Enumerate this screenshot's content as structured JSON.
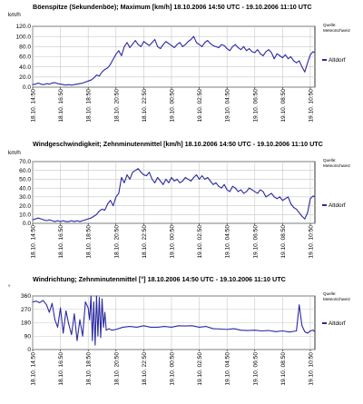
{
  "chart_data": [
    {
      "type": "line",
      "title": "Böenspitze (Sekundenböe); Maximum [km/h] 18.10.2006 14:50 UTC - 19.10.2006 11:10 UTC",
      "ylabel": "km/h",
      "ylim": [
        0,
        120
      ],
      "yticks": [
        "0.0",
        "20.0",
        "40.0",
        "60.0",
        "80.0",
        "100.0",
        "120.0"
      ],
      "xticks": [
        "18.10. 14:50",
        "18.10. 16:50",
        "18.10. 18:50",
        "18.10. 20:50",
        "18.10. 22:50",
        "19.10. 00:50",
        "19.10. 02:50",
        "19.10. 04:50",
        "19.10. 06:50",
        "19.10. 08:50",
        "19.10. 10:50"
      ],
      "xlim_hours": [
        0,
        20.33
      ],
      "grid": true,
      "legend": "right",
      "source_label": "Quelle: MeteoSchweiz",
      "series": [
        {
          "name": "Altdorf",
          "color": "#2a2aa0",
          "x": [
            0,
            0.2,
            0.4,
            0.6,
            0.8,
            1,
            1.2,
            1.4,
            1.6,
            1.8,
            2,
            2.2,
            2.4,
            2.6,
            2.8,
            3,
            3.2,
            3.4,
            3.6,
            3.8,
            4,
            4.2,
            4.4,
            4.6,
            4.8,
            5,
            5.2,
            5.4,
            5.6,
            5.8,
            6,
            6.2,
            6.4,
            6.6,
            6.8,
            7,
            7.2,
            7.4,
            7.6,
            7.8,
            8,
            8.2,
            8.4,
            8.6,
            8.8,
            9,
            9.2,
            9.4,
            9.6,
            9.8,
            10,
            10.2,
            10.4,
            10.6,
            10.8,
            11,
            11.2,
            11.4,
            11.6,
            11.8,
            12,
            12.2,
            12.4,
            12.6,
            12.8,
            13,
            13.2,
            13.4,
            13.6,
            13.8,
            14,
            14.2,
            14.4,
            14.6,
            14.8,
            15,
            15.2,
            15.4,
            15.6,
            15.8,
            16,
            16.2,
            16.4,
            16.6,
            16.8,
            17,
            17.2,
            17.4,
            17.6,
            17.8,
            18,
            18.2,
            18.4,
            18.6,
            18.8,
            19,
            19.2,
            19.4,
            19.6,
            19.8,
            20,
            20.2,
            20.33
          ],
          "y": [
            5,
            6,
            8,
            6,
            5,
            7,
            6,
            8,
            9,
            7,
            6,
            5,
            4,
            5,
            4,
            5,
            6,
            7,
            8,
            10,
            12,
            14,
            18,
            24,
            22,
            30,
            35,
            38,
            45,
            55,
            65,
            72,
            62,
            80,
            88,
            78,
            85,
            92,
            84,
            80,
            90,
            86,
            82,
            88,
            94,
            80,
            76,
            84,
            90,
            86,
            82,
            78,
            84,
            88,
            80,
            84,
            90,
            94,
            100,
            88,
            84,
            80,
            88,
            92,
            86,
            82,
            80,
            78,
            84,
            82,
            76,
            72,
            80,
            84,
            78,
            74,
            80,
            72,
            76,
            70,
            68,
            74,
            66,
            62,
            70,
            74,
            68,
            56,
            66,
            62,
            58,
            64,
            56,
            60,
            52,
            48,
            52,
            40,
            30,
            48,
            64,
            70,
            68
          ]
        }
      ]
    },
    {
      "type": "line",
      "title": "Windgeschwindigkeit; Zehnminutenmittel [km/h] 18.10.2006 14:50 UTC - 19.10.2006 11:10 UTC",
      "ylabel": "km/h",
      "ylim": [
        0,
        70
      ],
      "yticks": [
        "0.0",
        "10.0",
        "20.0",
        "30.0",
        "40.0",
        "50.0",
        "60.0",
        "70.0"
      ],
      "xticks": [
        "18.10. 14:50",
        "18.10. 16:50",
        "18.10. 18:50",
        "18.10. 20:50",
        "18.10. 22:50",
        "19.10. 00:50",
        "19.10. 02:50",
        "19.10. 04:50",
        "19.10. 06:50",
        "19.10. 08:50",
        "19.10. 10:50"
      ],
      "xlim_hours": [
        0,
        20.33
      ],
      "grid": true,
      "legend": "right",
      "source_label": "Quelle: MeteoSchweiz",
      "series": [
        {
          "name": "Altdorf",
          "color": "#2a2aa0",
          "x": [
            0,
            0.2,
            0.4,
            0.6,
            0.8,
            1,
            1.2,
            1.4,
            1.6,
            1.8,
            2,
            2.2,
            2.4,
            2.6,
            2.8,
            3,
            3.2,
            3.4,
            3.6,
            3.8,
            4,
            4.2,
            4.4,
            4.6,
            4.8,
            5,
            5.2,
            5.4,
            5.6,
            5.8,
            6,
            6.2,
            6.4,
            6.6,
            6.8,
            7,
            7.2,
            7.4,
            7.6,
            7.8,
            8,
            8.2,
            8.4,
            8.6,
            8.8,
            9,
            9.2,
            9.4,
            9.6,
            9.8,
            10,
            10.2,
            10.4,
            10.6,
            10.8,
            11,
            11.2,
            11.4,
            11.6,
            11.8,
            12,
            12.2,
            12.4,
            12.6,
            12.8,
            13,
            13.2,
            13.4,
            13.6,
            13.8,
            14,
            14.2,
            14.4,
            14.6,
            14.8,
            15,
            15.2,
            15.4,
            15.6,
            15.8,
            16,
            16.2,
            16.4,
            16.6,
            16.8,
            17,
            17.2,
            17.4,
            17.6,
            17.8,
            18,
            18.2,
            18.4,
            18.6,
            18.8,
            19,
            19.2,
            19.4,
            19.6,
            19.8,
            20,
            20.2,
            20.33
          ],
          "y": [
            4,
            5,
            6,
            5,
            4,
            3,
            4,
            3,
            2,
            3,
            2,
            3,
            2,
            2,
            3,
            2,
            3,
            2,
            3,
            4,
            5,
            6,
            8,
            10,
            14,
            16,
            15,
            22,
            26,
            20,
            30,
            34,
            52,
            46,
            55,
            50,
            58,
            60,
            62,
            58,
            55,
            54,
            58,
            50,
            46,
            52,
            48,
            44,
            50,
            46,
            52,
            48,
            50,
            46,
            48,
            52,
            50,
            48,
            52,
            55,
            50,
            54,
            50,
            52,
            48,
            44,
            46,
            42,
            40,
            44,
            38,
            36,
            42,
            40,
            36,
            38,
            34,
            36,
            40,
            38,
            36,
            34,
            38,
            36,
            30,
            32,
            34,
            30,
            28,
            30,
            26,
            28,
            30,
            22,
            18,
            16,
            12,
            8,
            5,
            12,
            28,
            31,
            30
          ]
        }
      ]
    },
    {
      "type": "line",
      "title": "Windrichtung; Zehnminutenmittel [°] 18.10.2006 14:50 UTC - 19.10.2006 11:10 UTC",
      "ylabel": "°",
      "ylim": [
        0,
        360
      ],
      "yticks": [
        "0",
        "90",
        "180",
        "270",
        "360"
      ],
      "xticks": [
        "18.10. 14:50",
        "18.10. 16:50",
        "18.10. 18:50",
        "18.10. 20:50",
        "18.10. 22:50",
        "19.10. 00:50",
        "19.10. 02:50",
        "19.10. 04:50",
        "19.10. 06:50",
        "19.10. 08:50",
        "19.10. 10:50"
      ],
      "xlim_hours": [
        0,
        20.33
      ],
      "grid": true,
      "legend": "right",
      "source_label": "Quelle: MeteoSchweiz",
      "series": [
        {
          "name": "Altdorf",
          "color": "#2a2aa0",
          "x": [
            0,
            0.25,
            0.5,
            0.75,
            1,
            1.2,
            1.4,
            1.6,
            1.8,
            2,
            2.2,
            2.4,
            2.6,
            2.8,
            3,
            3.2,
            3.4,
            3.6,
            3.8,
            4,
            4.1,
            4.2,
            4.3,
            4.4,
            4.5,
            4.6,
            4.7,
            4.8,
            4.9,
            5,
            5.1,
            5.2,
            5.3,
            5.5,
            5.7,
            6,
            6.5,
            7,
            7.5,
            8,
            8.5,
            9,
            9.5,
            10,
            10.5,
            11,
            11.5,
            12,
            12.5,
            13,
            13.5,
            14,
            14.5,
            15,
            15.5,
            16,
            16.5,
            17,
            17.5,
            18,
            18.5,
            19,
            19.2,
            19.4,
            19.6,
            19.8,
            20,
            20.2,
            20.33
          ],
          "y": [
            320,
            325,
            315,
            330,
            300,
            250,
            310,
            200,
            150,
            280,
            110,
            260,
            170,
            100,
            240,
            60,
            200,
            90,
            320,
            280,
            200,
            360,
            60,
            320,
            30,
            360,
            90,
            350,
            80,
            340,
            150,
            250,
            130,
            140,
            130,
            135,
            150,
            155,
            150,
            160,
            150,
            150,
            155,
            150,
            160,
            158,
            160,
            150,
            155,
            140,
            138,
            135,
            140,
            130,
            128,
            130,
            125,
            128,
            120,
            125,
            118,
            125,
            300,
            160,
            120,
            110,
            125,
            130,
            120
          ]
        }
      ]
    }
  ]
}
